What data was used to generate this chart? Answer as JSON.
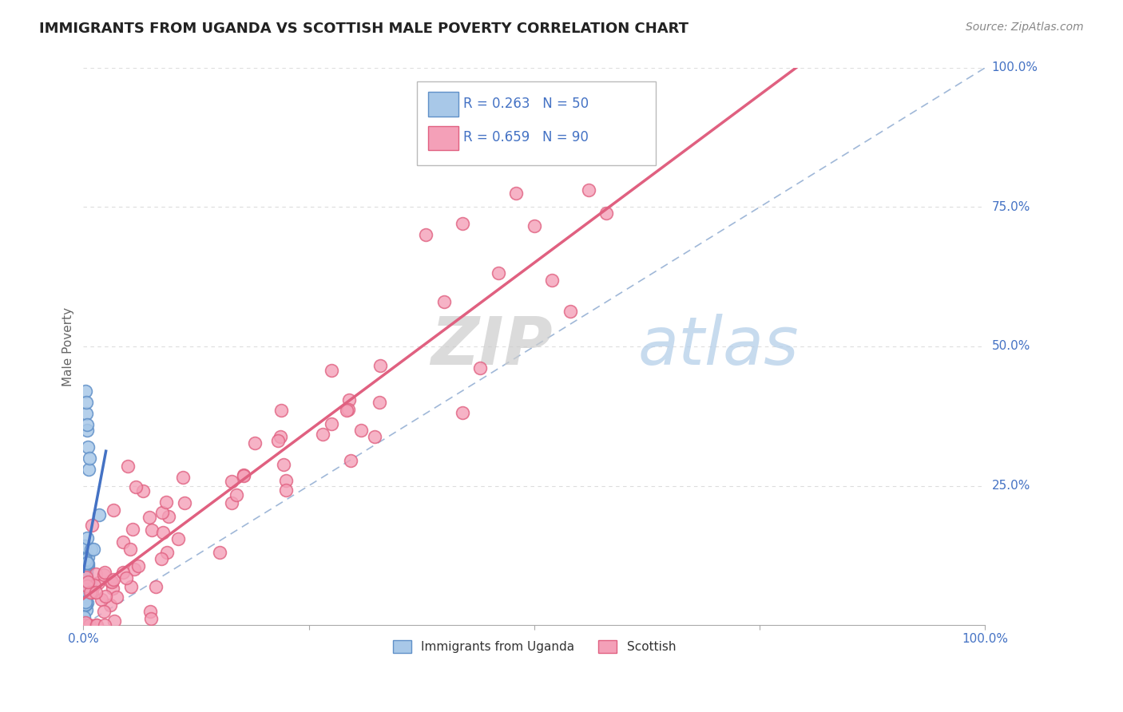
{
  "title": "IMMIGRANTS FROM UGANDA VS SCOTTISH MALE POVERTY CORRELATION CHART",
  "source": "Source: ZipAtlas.com",
  "ylabel": "Male Poverty",
  "ylabel_right_labels": [
    "100.0%",
    "75.0%",
    "50.0%",
    "25.0%"
  ],
  "ylabel_right_positions": [
    1.0,
    0.75,
    0.5,
    0.25
  ],
  "legend_r1": "R = 0.263",
  "legend_n1": "N = 50",
  "legend_r2": "R = 0.659",
  "legend_n2": "N = 90",
  "legend_label1": "Immigrants from Uganda",
  "legend_label2": "Scottish",
  "color_uganda_fill": "#A8C8E8",
  "color_uganda_edge": "#6090C8",
  "color_scottish_fill": "#F4A0B8",
  "color_scottish_edge": "#E06080",
  "color_legend_text": "#4472C4",
  "color_trendline_uganda": "#4472C4",
  "color_trendline_scottish": "#E06080",
  "color_diagonal": "#A0B8D8",
  "watermark_zip": "ZIP",
  "watermark_atlas": "atlas",
  "xlim": [
    0.0,
    1.0
  ],
  "ylim": [
    0.0,
    1.0
  ]
}
